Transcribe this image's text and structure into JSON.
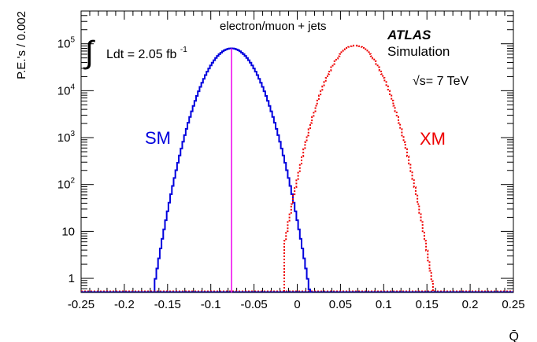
{
  "chart_data": {
    "type": "histogram",
    "xlabel": "Q̄",
    "ylabel": "P.E.'s / 0.002",
    "xlim": [
      -0.25,
      0.25
    ],
    "ylim": [
      0.5,
      500000
    ],
    "yscale": "log",
    "x_ticks": [
      "-0.25",
      "-0.2",
      "-0.15",
      "-0.1",
      "-0.05",
      "0",
      "0.05",
      "0.1",
      "0.15",
      "0.2",
      "0.25"
    ],
    "y_ticks": [
      {
        "value": 1,
        "label": "1"
      },
      {
        "value": 10,
        "label": "10"
      },
      {
        "value": 100,
        "base": "10",
        "exp": "2"
      },
      {
        "value": 1000,
        "base": "10",
        "exp": "3"
      },
      {
        "value": 10000,
        "base": "10",
        "exp": "4"
      },
      {
        "value": 100000,
        "base": "10",
        "exp": "5"
      }
    ],
    "series": [
      {
        "name": "SM",
        "color": "#0000dd",
        "style": "solid",
        "mean": -0.076,
        "sigma": 0.0185,
        "peak": 80000,
        "x_range": [
          -0.165,
          0.015
        ]
      },
      {
        "name": "XM",
        "color": "#ee0000",
        "style": "dotted",
        "mean": 0.067,
        "sigma": 0.0185,
        "peak": 92000,
        "x_range": [
          -0.015,
          0.155
        ]
      }
    ],
    "vertical_line": {
      "x": -0.076,
      "color": "#ee00ee"
    },
    "annotations": {
      "channel": "electron/muon + jets",
      "atlas": "ATLAS",
      "simulation": "Simulation",
      "sqrt_s": "√s= 7 TeV",
      "lumi": "Ldt = 2.05 fb",
      "lumi_exp": "-1",
      "integral_symbol": "∫"
    }
  }
}
